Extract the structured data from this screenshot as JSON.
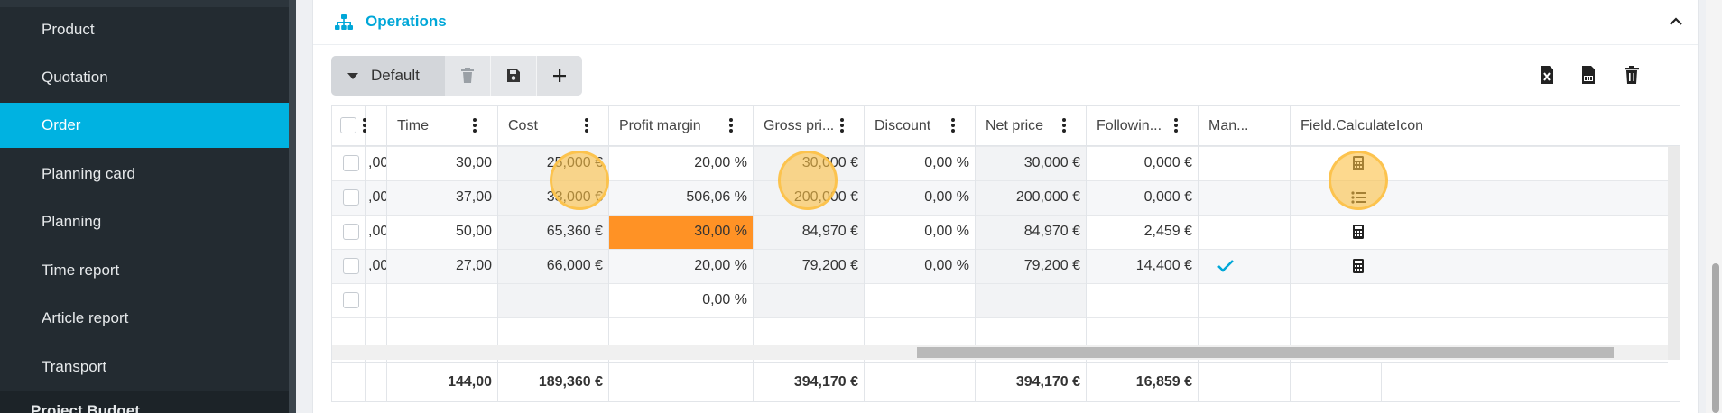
{
  "sidebar": {
    "items": [
      {
        "label": "Product"
      },
      {
        "label": "Quotation"
      },
      {
        "label": "Order"
      },
      {
        "label": "Planning card"
      },
      {
        "label": "Planning"
      },
      {
        "label": "Time report"
      },
      {
        "label": "Article report"
      },
      {
        "label": "Transport"
      }
    ],
    "active": "Order",
    "cut_label": "Project Budget"
  },
  "section": {
    "title": "Operations",
    "icon": "sitemap-icon",
    "collapse_icon": "chevron-up-icon"
  },
  "toolbar": {
    "view_label": "Default",
    "icons": [
      "trash-icon",
      "save-icon",
      "plus-icon"
    ],
    "right_icons": [
      "excel-export-icon",
      "pdf-export-icon",
      "trash-icon"
    ]
  },
  "grid": {
    "columns": [
      {
        "key": "sel",
        "label": ""
      },
      {
        "key": "prev",
        "label": ""
      },
      {
        "key": "time",
        "label": "Time"
      },
      {
        "key": "cost",
        "label": "Cost"
      },
      {
        "key": "margin",
        "label": "Profit margin"
      },
      {
        "key": "gross",
        "label": "Gross pri..."
      },
      {
        "key": "discount",
        "label": "Discount"
      },
      {
        "key": "net",
        "label": "Net price"
      },
      {
        "key": "following",
        "label": "Followin..."
      },
      {
        "key": "man",
        "label": "Man..."
      },
      {
        "key": "blank",
        "label": ""
      },
      {
        "key": "calc",
        "label": "Field.CalculateIcon"
      }
    ],
    "rows": [
      {
        "prev": ",00",
        "time": "30,00",
        "cost": "25,000 €",
        "margin": "20,00 %",
        "gross": "30,000 €",
        "discount": "0,00 %",
        "net": "30,000 €",
        "following": "0,000 €",
        "man": "",
        "calc": "calculator-icon"
      },
      {
        "prev": ",00",
        "time": "37,00",
        "cost": "33,000 €",
        "margin": "506,06 %",
        "gross": "200,000 €",
        "discount": "0,00 %",
        "net": "200,000 €",
        "following": "0,000 €",
        "man": "",
        "calc": "list-icon"
      },
      {
        "prev": ",00",
        "time": "50,00",
        "cost": "65,360 €",
        "margin": "30,00 %",
        "gross": "84,970 €",
        "discount": "0,00 %",
        "net": "84,970 €",
        "following": "2,459 €",
        "man": "",
        "calc": "calculator-icon"
      },
      {
        "prev": ",00",
        "time": "27,00",
        "cost": "66,000 €",
        "margin": "20,00 %",
        "gross": "79,200 €",
        "discount": "0,00 %",
        "net": "79,200 €",
        "following": "14,400 €",
        "man": "checkmark-icon",
        "calc": "calculator-icon"
      },
      {
        "prev": "",
        "time": "",
        "cost": "",
        "margin": "0,00 %",
        "gross": "",
        "discount": "",
        "net": "",
        "following": "",
        "man": "",
        "calc": ""
      }
    ],
    "totals": {
      "time": "144,00",
      "cost": "189,360 €",
      "gross": "394,170 €",
      "net": "394,170 €",
      "following": "16,859 €"
    }
  },
  "colors": {
    "accent": "#00b2e1",
    "highlight_cell": "#ff9225",
    "click_marker": "#fbbf43",
    "sidebar_bg": "#232b31"
  }
}
